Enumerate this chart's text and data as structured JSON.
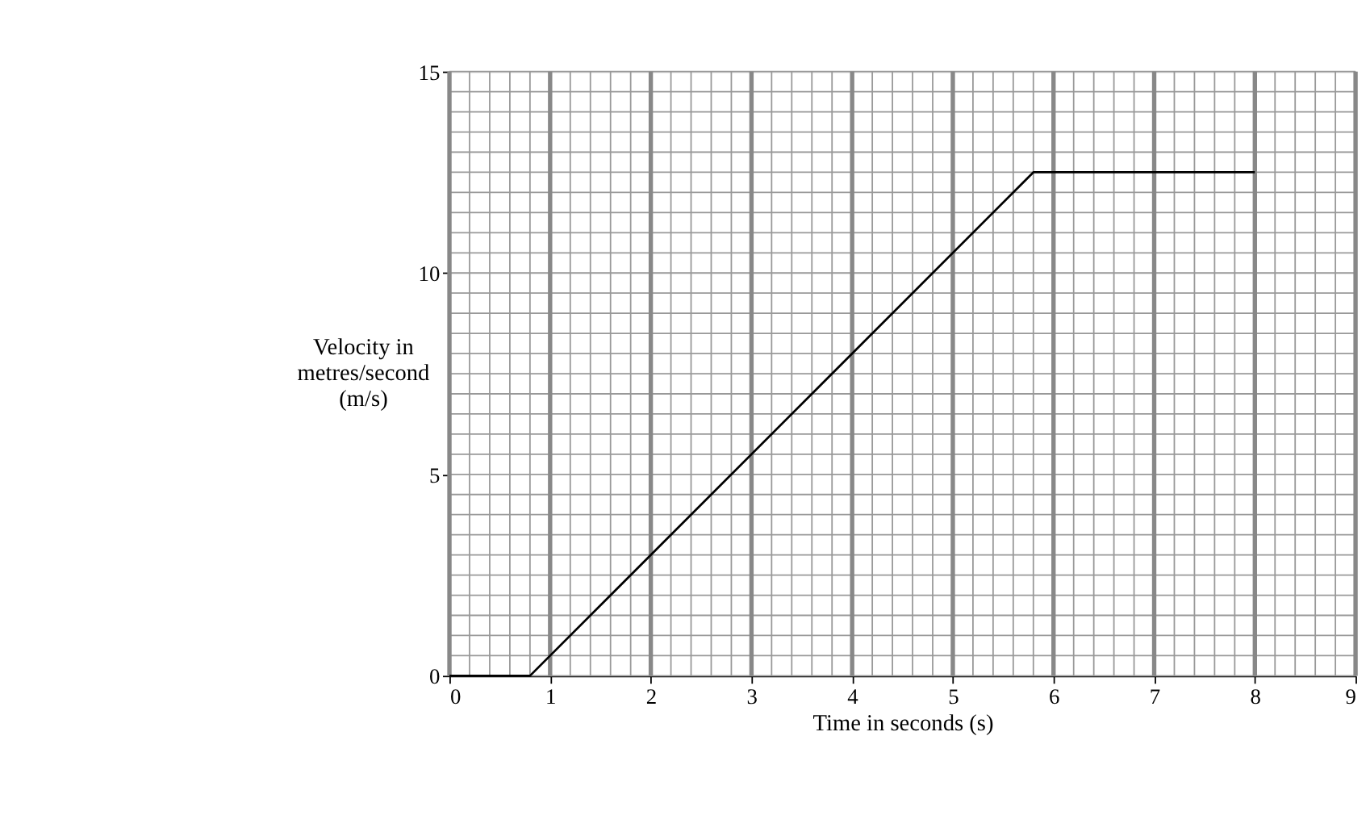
{
  "chart_data": {
    "type": "line",
    "x": [
      0,
      0.8,
      5.8,
      8
    ],
    "values": [
      0,
      0,
      12.5,
      12.5
    ],
    "color": "#000000",
    "xlabel": "Time in seconds (s)",
    "ylabel": "Velocity in\nmetres/second\n(m/s)",
    "xlim": [
      0,
      9
    ],
    "xticks": [
      0,
      1,
      2,
      3,
      4,
      5,
      6,
      7,
      8,
      9
    ],
    "ylim": [
      0,
      15
    ],
    "yticks": [
      0,
      5,
      10,
      15
    ],
    "grid": true,
    "marker": "none",
    "line_style": "solid"
  }
}
